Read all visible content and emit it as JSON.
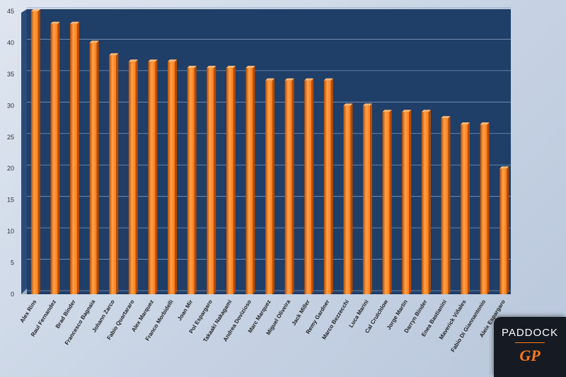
{
  "chart_data": {
    "type": "bar",
    "categories": [
      "Alex Rins",
      "Raul Fernandez",
      "Brad Binder",
      "Francesco Bagnaia",
      "Johann Zarco",
      "Fabio Quartararo",
      "Alex Marquez",
      "Franco Morbidelli",
      "Joan Mir",
      "Pol Espargaro",
      "Takaaki Nakagami",
      "Andrea Dovizioso",
      "Marc Marquez",
      "Miguel Oliveira",
      "Jack Miller",
      "Remy Gardner",
      "Marco Bezzecchi",
      "Luca Marini",
      "Cal Crutchlow",
      "Jorge Martin",
      "Darryn Binder",
      "Enea Bastianini",
      "Maverick Viñales",
      "Fabio Di Giannantonio",
      "Aleix Espargaro"
    ],
    "values": [
      45,
      43,
      43,
      40,
      38,
      37,
      37,
      37,
      36,
      36,
      36,
      36,
      34,
      34,
      34,
      34,
      30,
      30,
      29,
      29,
      29,
      28,
      27,
      27,
      20
    ],
    "yticks": [
      "0",
      "5",
      "10",
      "15",
      "20",
      "25",
      "30",
      "35",
      "40",
      "45"
    ],
    "ylim": [
      0,
      45
    ],
    "grid": true,
    "legend": "none",
    "colors": {
      "bar": "#ff7a12",
      "bar_dark": "#b84a00",
      "plot_bg": "#1f3e68",
      "grid": "#7f97b8"
    }
  },
  "logo": {
    "line1": "PADDOCK",
    "line2": "GP"
  }
}
